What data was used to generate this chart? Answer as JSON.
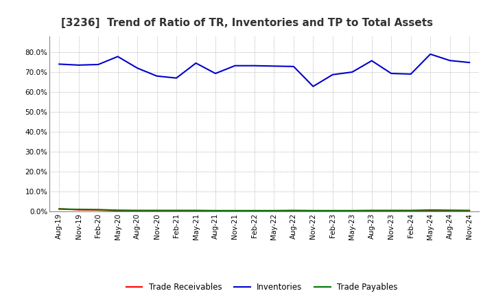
{
  "title": "[3236]  Trend of Ratio of TR, Inventories and TP to Total Assets",
  "x_labels": [
    "Aug-19",
    "Nov-19",
    "Feb-20",
    "May-20",
    "Aug-20",
    "Nov-20",
    "Feb-21",
    "May-21",
    "Aug-21",
    "Nov-21",
    "Feb-22",
    "May-22",
    "Aug-22",
    "Nov-22",
    "Feb-23",
    "May-23",
    "Aug-23",
    "Nov-23",
    "Feb-24",
    "May-24",
    "Aug-24",
    "Nov-24"
  ],
  "inventories": [
    0.74,
    0.735,
    0.738,
    0.778,
    0.72,
    0.68,
    0.67,
    0.745,
    0.693,
    0.732,
    0.732,
    0.73,
    0.728,
    0.628,
    0.687,
    0.7,
    0.757,
    0.693,
    0.69,
    0.79,
    0.758,
    0.748
  ],
  "trade_receivables": [
    0.013,
    0.008,
    0.007,
    0.003,
    0.003,
    0.003,
    0.003,
    0.003,
    0.003,
    0.003,
    0.003,
    0.003,
    0.003,
    0.003,
    0.003,
    0.003,
    0.003,
    0.003,
    0.003,
    0.003,
    0.003,
    0.003
  ],
  "trade_payables": [
    0.012,
    0.01,
    0.009,
    0.006,
    0.005,
    0.005,
    0.005,
    0.005,
    0.004,
    0.004,
    0.004,
    0.004,
    0.005,
    0.004,
    0.004,
    0.004,
    0.005,
    0.005,
    0.005,
    0.007,
    0.006,
    0.005
  ],
  "ylim": [
    0.0,
    0.88
  ],
  "yticks": [
    0.0,
    0.1,
    0.2,
    0.3,
    0.4,
    0.5,
    0.6,
    0.7,
    0.8
  ],
  "line_colors": {
    "trade_receivables": "#FF0000",
    "inventories": "#0000CC",
    "trade_payables": "#007700"
  },
  "legend_labels": [
    "Trade Receivables",
    "Inventories",
    "Trade Payables"
  ],
  "background_color": "#FFFFFF",
  "plot_background": "#FFFFFF",
  "grid_color": "#999999",
  "title_fontsize": 11,
  "tick_fontsize": 7.5,
  "legend_fontsize": 8.5,
  "title_color": "#333333"
}
